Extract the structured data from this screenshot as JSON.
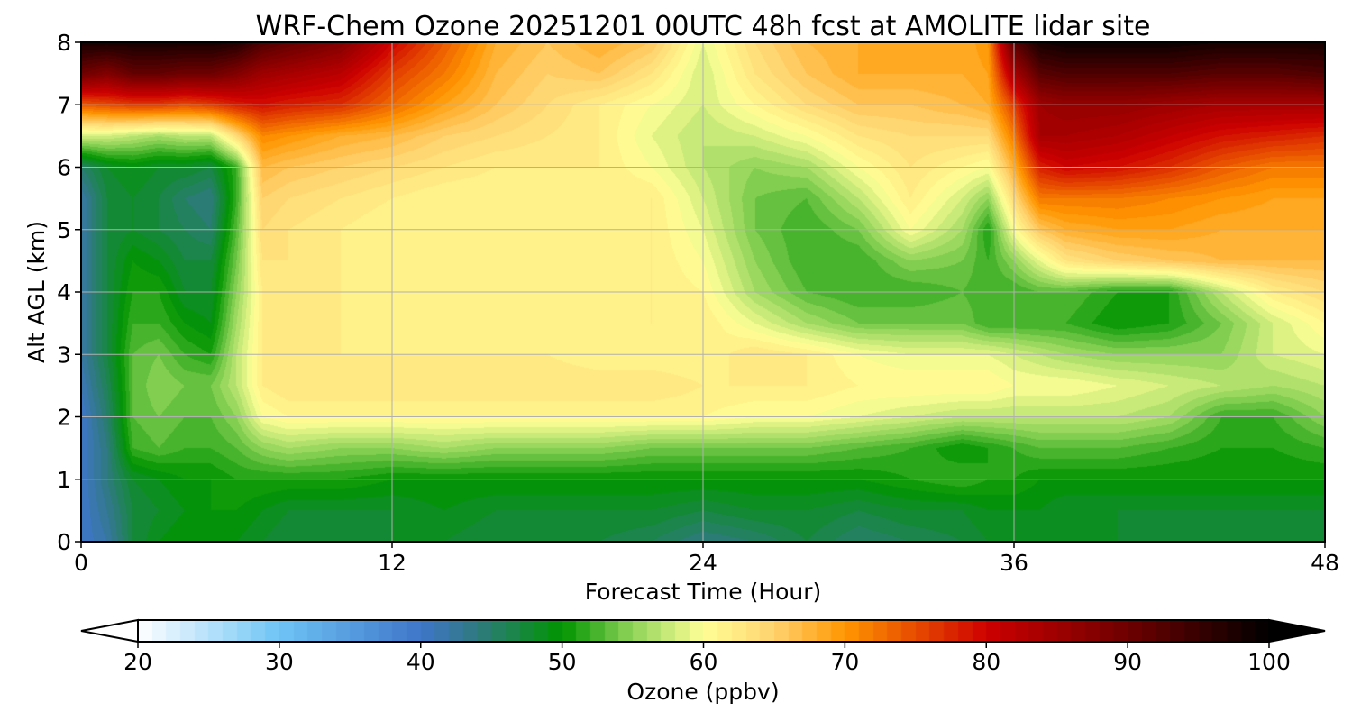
{
  "chart_data": {
    "type": "heatmap",
    "subtype": "filled-contour",
    "title": "WRF-Chem Ozone  20251201 00UTC 48h fcst at AMOLITE lidar site",
    "xlabel": "Forecast Time (Hour)",
    "ylabel": "Alt AGL (km)",
    "xlim": [
      0,
      48
    ],
    "ylim": [
      0,
      8
    ],
    "xticks": [
      0,
      12,
      24,
      36,
      48
    ],
    "yticks": [
      0,
      1,
      2,
      3,
      4,
      5,
      6,
      7,
      8
    ],
    "grid": true,
    "colorbar": {
      "label": "Ozone  (ppbv)",
      "range": [
        20,
        100
      ],
      "ticks": [
        20,
        30,
        40,
        50,
        60,
        70,
        80,
        90,
        100
      ],
      "extend": "both",
      "orientation": "horizontal",
      "placement": "bottom",
      "stops": [
        {
          "value": 20,
          "color": "#ffffff"
        },
        {
          "value": 30,
          "color": "#6ec4f5"
        },
        {
          "value": 40,
          "color": "#3f75c9"
        },
        {
          "value": 44,
          "color": "#2f7a80"
        },
        {
          "value": 50,
          "color": "#009400"
        },
        {
          "value": 55,
          "color": "#90d45a"
        },
        {
          "value": 60,
          "color": "#ffff96"
        },
        {
          "value": 65,
          "color": "#ffd26e"
        },
        {
          "value": 70,
          "color": "#ff9600"
        },
        {
          "value": 80,
          "color": "#cd0000"
        },
        {
          "value": 90,
          "color": "#6e0000"
        },
        {
          "value": 100,
          "color": "#000000"
        }
      ]
    },
    "times": [
      0,
      1,
      2,
      3,
      4,
      5,
      6,
      7,
      8,
      10,
      12,
      14,
      16,
      18,
      20,
      22,
      24,
      26,
      28,
      30,
      32,
      34,
      35,
      36,
      37,
      38,
      40,
      42,
      44,
      46,
      48
    ],
    "altitudes": [
      0,
      0.5,
      1,
      1.5,
      2,
      2.5,
      3,
      3.5,
      4,
      4.5,
      5,
      5.5,
      6,
      6.5,
      7,
      7.5,
      8
    ],
    "ozone_ppbv": [
      [
        40,
        42,
        47,
        49,
        50,
        50,
        49,
        48,
        47,
        47,
        48,
        48,
        47,
        47,
        47,
        46,
        44,
        45,
        47,
        45,
        46,
        47,
        48,
        48,
        48,
        48,
        48,
        47,
        47,
        47,
        47
      ],
      [
        40,
        43,
        47,
        48,
        49,
        50,
        50,
        49,
        48,
        48,
        48,
        49,
        48,
        48,
        48,
        48,
        47,
        48,
        48,
        47,
        48,
        48,
        49,
        49,
        49,
        48,
        48,
        48,
        48,
        48,
        48
      ],
      [
        40,
        44,
        48,
        49,
        50,
        50,
        51,
        51,
        51,
        51,
        50,
        50,
        50,
        50,
        50,
        50,
        50,
        50,
        50,
        50,
        51,
        52,
        51,
        51,
        50,
        50,
        50,
        50,
        50,
        50,
        50
      ],
      [
        40,
        44,
        52,
        53,
        52,
        52,
        53,
        55,
        56,
        55,
        55,
        56,
        55,
        55,
        55,
        54,
        54,
        54,
        54,
        53,
        52,
        50,
        51,
        52,
        53,
        53,
        53,
        52,
        51,
        51,
        52
      ],
      [
        40,
        45,
        53,
        54,
        53,
        53,
        55,
        60,
        61,
        61,
        61,
        61,
        61,
        61,
        61,
        61,
        61,
        60,
        60,
        59,
        58,
        57,
        57,
        57,
        57,
        57,
        57,
        56,
        52,
        52,
        55
      ],
      [
        41,
        46,
        53,
        55,
        54,
        54,
        57,
        62,
        63,
        63,
        63,
        63,
        63,
        63,
        63,
        63,
        62,
        62,
        62,
        61,
        61,
        61,
        61,
        60,
        60,
        60,
        59,
        58,
        57,
        56,
        57
      ],
      [
        42,
        47,
        53,
        54,
        52,
        51,
        57,
        62,
        62,
        62,
        62,
        62,
        62,
        62,
        61,
        61,
        61,
        63,
        62,
        60,
        59,
        59,
        59,
        58,
        57,
        56,
        55,
        55,
        55,
        58,
        59
      ],
      [
        42,
        47,
        52,
        52,
        50,
        49,
        56,
        62,
        62,
        62,
        61,
        61,
        61,
        61,
        61,
        62,
        62,
        59,
        56,
        54,
        54,
        54,
        52,
        52,
        52,
        52,
        50,
        51,
        54,
        58,
        61
      ],
      [
        42,
        47,
        51,
        51,
        48,
        48,
        55,
        62,
        62,
        62,
        61,
        61,
        61,
        61,
        61,
        62,
        61,
        56,
        53,
        52,
        52,
        53,
        52,
        52,
        53,
        53,
        51,
        51,
        57,
        62,
        64
      ],
      [
        42,
        47,
        50,
        49,
        47,
        47,
        54,
        63,
        63,
        62,
        61,
        61,
        61,
        61,
        61,
        62,
        60,
        55,
        52,
        52,
        55,
        54,
        52,
        55,
        59,
        63,
        65,
        66,
        67,
        67,
        67
      ],
      [
        42,
        47,
        48,
        47,
        46,
        45,
        53,
        64,
        63,
        62,
        61,
        61,
        61,
        61,
        61,
        62,
        59,
        54,
        52,
        54,
        60,
        56,
        51,
        60,
        66,
        68,
        69,
        69,
        68,
        68,
        68
      ],
      [
        42,
        47,
        48,
        47,
        45,
        44,
        52,
        65,
        64,
        63,
        62,
        61,
        61,
        61,
        62,
        62,
        58,
        54,
        53,
        57,
        62,
        58,
        55,
        64,
        72,
        72,
        72,
        71,
        70,
        69,
        69
      ],
      [
        45,
        48,
        49,
        48,
        48,
        47,
        52,
        67,
        66,
        65,
        64,
        63,
        62,
        62,
        62,
        60,
        57,
        55,
        56,
        60,
        63,
        61,
        60,
        68,
        78,
        80,
        79,
        77,
        74,
        72,
        72
      ],
      [
        58,
        58,
        57,
        56,
        57,
        57,
        64,
        71,
        70,
        68,
        67,
        65,
        64,
        63,
        62,
        59,
        57,
        58,
        60,
        63,
        64,
        64,
        64,
        72,
        84,
        84,
        83,
        81,
        79,
        78,
        77
      ],
      [
        74,
        75,
        76,
        76,
        75,
        76,
        78,
        79,
        78,
        77,
        73,
        69,
        66,
        64,
        62,
        60,
        58,
        61,
        64,
        66,
        66,
        67,
        68,
        76,
        85,
        86,
        86,
        85,
        84,
        84,
        84
      ],
      [
        90,
        88,
        91,
        91,
        90,
        90,
        88,
        85,
        84,
        82,
        76,
        72,
        67,
        65,
        66,
        63,
        58,
        63,
        66,
        68,
        68,
        68,
        69,
        84,
        92,
        93,
        93,
        93,
        92,
        92,
        93
      ],
      [
        98,
        98,
        98,
        98,
        98,
        98,
        97,
        93,
        91,
        88,
        80,
        74,
        68,
        66,
        68,
        66,
        59,
        64,
        67,
        68,
        68,
        68,
        70,
        92,
        98,
        99,
        99,
        99,
        98,
        98,
        98
      ]
    ]
  }
}
